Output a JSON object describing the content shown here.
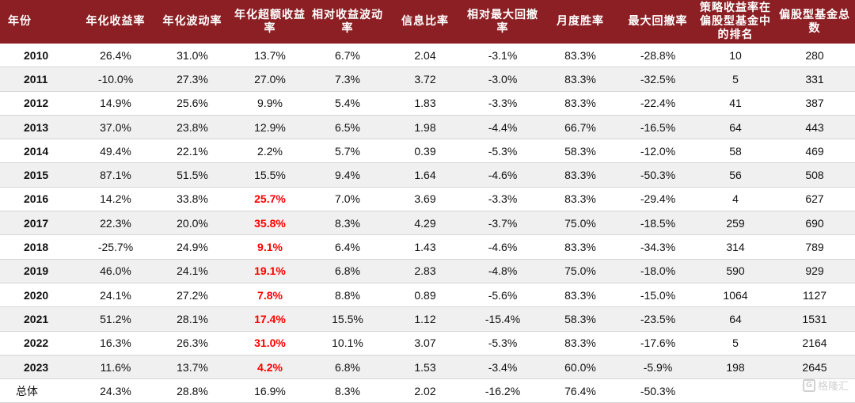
{
  "table": {
    "headers": [
      "年份",
      "年化收益率",
      "年化波动率",
      "年化超额收益率",
      "相对收益波动率",
      "信息比率",
      "相对最大回撤率",
      "月度胜率",
      "最大回撤率",
      "策略收益率在偏股型基金中的排名",
      "偏股型基金总数"
    ],
    "rows": [
      [
        "2010",
        "26.4%",
        "31.0%",
        "13.7%",
        "6.7%",
        "2.04",
        "-3.1%",
        "83.3%",
        "-28.8%",
        "10",
        "280"
      ],
      [
        "2011",
        "-10.0%",
        "27.3%",
        "27.0%",
        "7.3%",
        "3.72",
        "-3.0%",
        "83.3%",
        "-32.5%",
        "5",
        "331"
      ],
      [
        "2012",
        "14.9%",
        "25.6%",
        "9.9%",
        "5.4%",
        "1.83",
        "-3.3%",
        "83.3%",
        "-22.4%",
        "41",
        "387"
      ],
      [
        "2013",
        "37.0%",
        "23.8%",
        "12.9%",
        "6.5%",
        "1.98",
        "-4.4%",
        "66.7%",
        "-16.5%",
        "64",
        "443"
      ],
      [
        "2014",
        "49.4%",
        "22.1%",
        "2.2%",
        "5.7%",
        "0.39",
        "-5.3%",
        "58.3%",
        "-12.0%",
        "58",
        "469"
      ],
      [
        "2015",
        "87.1%",
        "51.5%",
        "15.5%",
        "9.4%",
        "1.64",
        "-4.6%",
        "83.3%",
        "-50.3%",
        "56",
        "508"
      ],
      [
        "2016",
        "14.2%",
        "33.8%",
        "25.7%",
        "7.0%",
        "3.69",
        "-3.3%",
        "83.3%",
        "-29.4%",
        "4",
        "627"
      ],
      [
        "2017",
        "22.3%",
        "20.0%",
        "35.8%",
        "8.3%",
        "4.29",
        "-3.7%",
        "75.0%",
        "-18.5%",
        "259",
        "690"
      ],
      [
        "2018",
        "-25.7%",
        "24.9%",
        "9.1%",
        "6.4%",
        "1.43",
        "-4.6%",
        "83.3%",
        "-34.3%",
        "314",
        "789"
      ],
      [
        "2019",
        "46.0%",
        "24.1%",
        "19.1%",
        "6.8%",
        "2.83",
        "-4.8%",
        "75.0%",
        "-18.0%",
        "590",
        "929"
      ],
      [
        "2020",
        "24.1%",
        "27.2%",
        "7.8%",
        "8.8%",
        "0.89",
        "-5.6%",
        "83.3%",
        "-15.0%",
        "1064",
        "1127"
      ],
      [
        "2021",
        "51.2%",
        "28.1%",
        "17.4%",
        "15.5%",
        "1.12",
        "-15.4%",
        "58.3%",
        "-23.5%",
        "64",
        "1531"
      ],
      [
        "2022",
        "16.3%",
        "26.3%",
        "31.0%",
        "10.1%",
        "3.07",
        "-5.3%",
        "83.3%",
        "-17.6%",
        "5",
        "2164"
      ],
      [
        "2023",
        "11.6%",
        "13.7%",
        "4.2%",
        "6.8%",
        "1.53",
        "-3.4%",
        "60.0%",
        "-5.9%",
        "198",
        "2645"
      ],
      [
        "总体",
        "24.3%",
        "28.8%",
        "16.9%",
        "8.3%",
        "2.02",
        "-16.2%",
        "76.4%",
        "-50.3%",
        "",
        ""
      ]
    ],
    "highlight_rows": [
      6,
      7,
      8,
      9,
      10,
      11,
      12,
      13
    ],
    "highlight_col": 3,
    "highlight_color": "#ff0000",
    "header_bg": "#8b1f24"
  },
  "watermark": {
    "text": "格隆汇",
    "mark": "G"
  }
}
